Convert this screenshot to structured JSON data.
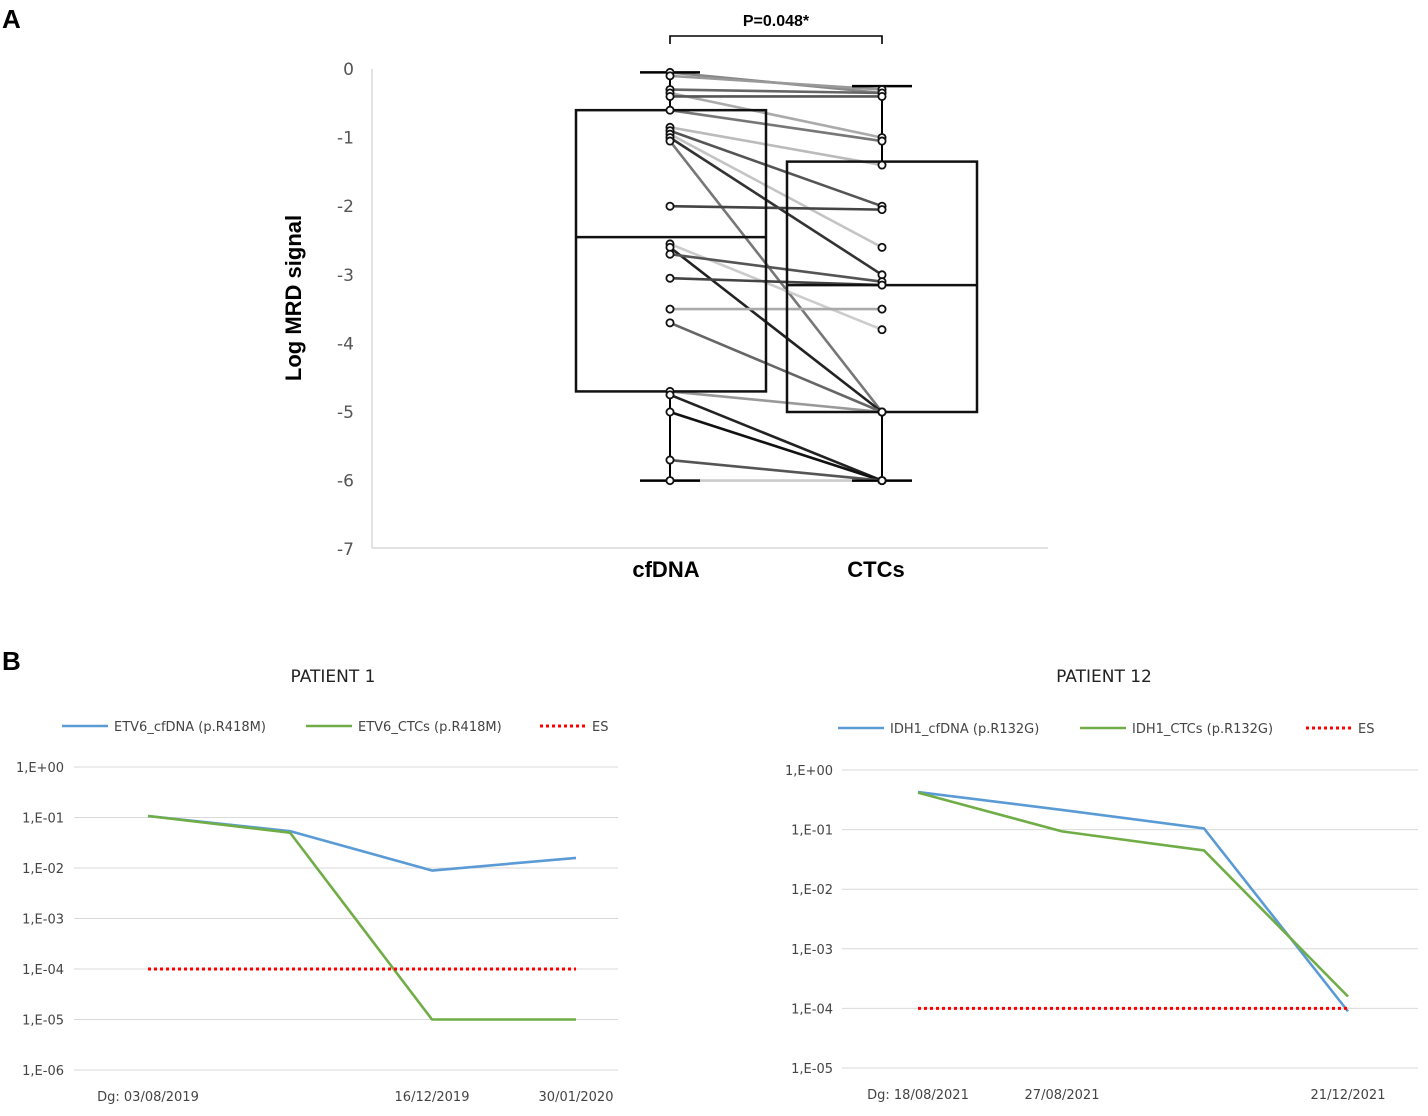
{
  "panels": {
    "a_label": "A",
    "b_label": "B"
  },
  "chart_data": [
    {
      "type": "boxplot-paired",
      "title": "",
      "ylabel": "Log MRD signal",
      "ylim": [
        -7,
        0
      ],
      "yticks": [
        "0",
        "-1",
        "-2",
        "-3",
        "-4",
        "-5",
        "-6",
        "-7"
      ],
      "categories": [
        "cfDNA",
        "CTCs"
      ],
      "significance": "P=0.048*",
      "boxes": [
        {
          "name": "cfDNA",
          "q1": -4.7,
          "median": -2.45,
          "q3": -0.6,
          "whisker_low": -6.0,
          "whisker_high": -0.05
        },
        {
          "name": "CTCs",
          "q1": -5.0,
          "median": -3.15,
          "q3": -1.35,
          "whisker_low": -6.0,
          "whisker_high": -0.25
        }
      ],
      "pairs": [
        {
          "cfDNA": -0.05,
          "CTCs": -0.35,
          "shade": "#888888"
        },
        {
          "cfDNA": -0.1,
          "CTCs": -0.3,
          "shade": "#999999"
        },
        {
          "cfDNA": -0.3,
          "CTCs": -0.35,
          "shade": "#666666"
        },
        {
          "cfDNA": -0.35,
          "CTCs": -1.0,
          "shade": "#aaaaaa"
        },
        {
          "cfDNA": -0.4,
          "CTCs": -0.4,
          "shade": "#555555"
        },
        {
          "cfDNA": -0.6,
          "CTCs": -1.05,
          "shade": "#777777"
        },
        {
          "cfDNA": -0.85,
          "CTCs": -1.4,
          "shade": "#bbbbbb"
        },
        {
          "cfDNA": -0.9,
          "CTCs": -2.0,
          "shade": "#555555"
        },
        {
          "cfDNA": -0.95,
          "CTCs": -2.6,
          "shade": "#c4c4c4"
        },
        {
          "cfDNA": -1.0,
          "CTCs": -3.0,
          "shade": "#333333"
        },
        {
          "cfDNA": -1.05,
          "CTCs": -5.0,
          "shade": "#777777"
        },
        {
          "cfDNA": -2.0,
          "CTCs": -2.05,
          "shade": "#444444"
        },
        {
          "cfDNA": -2.55,
          "CTCs": -3.8,
          "shade": "#cccccc"
        },
        {
          "cfDNA": -2.6,
          "CTCs": -5.0,
          "shade": "#222222"
        },
        {
          "cfDNA": -2.7,
          "CTCs": -3.1,
          "shade": "#555555"
        },
        {
          "cfDNA": -3.05,
          "CTCs": -3.15,
          "shade": "#444444"
        },
        {
          "cfDNA": -3.5,
          "CTCs": -3.5,
          "shade": "#aaaaaa"
        },
        {
          "cfDNA": -3.7,
          "CTCs": -5.0,
          "shade": "#666666"
        },
        {
          "cfDNA": -4.7,
          "CTCs": -5.0,
          "shade": "#999999"
        },
        {
          "cfDNA": -4.75,
          "CTCs": -6.0,
          "shade": "#222222"
        },
        {
          "cfDNA": -5.0,
          "CTCs": -6.0,
          "shade": "#111111"
        },
        {
          "cfDNA": -5.7,
          "CTCs": -6.0,
          "shade": "#555555"
        },
        {
          "cfDNA": -6.0,
          "CTCs": -6.0,
          "shade": "#cccccc"
        }
      ]
    },
    {
      "type": "line",
      "title": "PATIENT 1",
      "y_scale": "log10",
      "ylim_exp": [
        -6,
        0
      ],
      "yticks": [
        "1,E+00",
        "1,E-01",
        "1,E-02",
        "1,E-03",
        "1,E-04",
        "1,E-05",
        "1,E-06"
      ],
      "x": [
        "Dg: 03/08/2019",
        "",
        "16/12/2019",
        "30/01/2020"
      ],
      "series": [
        {
          "name": "ETV6_cfDNA (p.R418M)",
          "color": "#5b9bd5",
          "style": "solid",
          "log10_values": [
            -0.97,
            -1.27,
            -2.05,
            -1.8
          ]
        },
        {
          "name": "ETV6_CTCs (p.R418M)",
          "color": "#70ad47",
          "style": "solid",
          "log10_values": [
            -0.97,
            -1.3,
            -5.0,
            -5.0
          ]
        },
        {
          "name": "ES",
          "color": "#ff0000",
          "style": "dotted",
          "log10_values": [
            -4.0,
            -4.0,
            -4.0,
            -4.0
          ]
        }
      ]
    },
    {
      "type": "line",
      "title": "PATIENT 12",
      "y_scale": "log10",
      "ylim_exp": [
        -5,
        0
      ],
      "yticks": [
        "1,E+00",
        "1,E-01",
        "1,E-02",
        "1,E-03",
        "1,E-04",
        "1,E-05"
      ],
      "x": [
        "Dg: 18/08/2021",
        "27/08/2021",
        "",
        "21/12/2021"
      ],
      "series": [
        {
          "name": "IDH1_cfDNA (p.R132G)",
          "color": "#5b9bd5",
          "style": "solid",
          "log10_values": [
            -0.37,
            -0.67,
            -0.98,
            -4.05
          ]
        },
        {
          "name": "IDH1_CTCs (p.R132G)",
          "color": "#70ad47",
          "style": "solid",
          "log10_values": [
            -0.38,
            -1.03,
            -1.35,
            -3.8
          ]
        },
        {
          "name": "ES",
          "color": "#ff0000",
          "style": "dotted",
          "log10_values": [
            -4.0,
            -4.0,
            -4.0,
            -4.0
          ]
        }
      ]
    }
  ]
}
